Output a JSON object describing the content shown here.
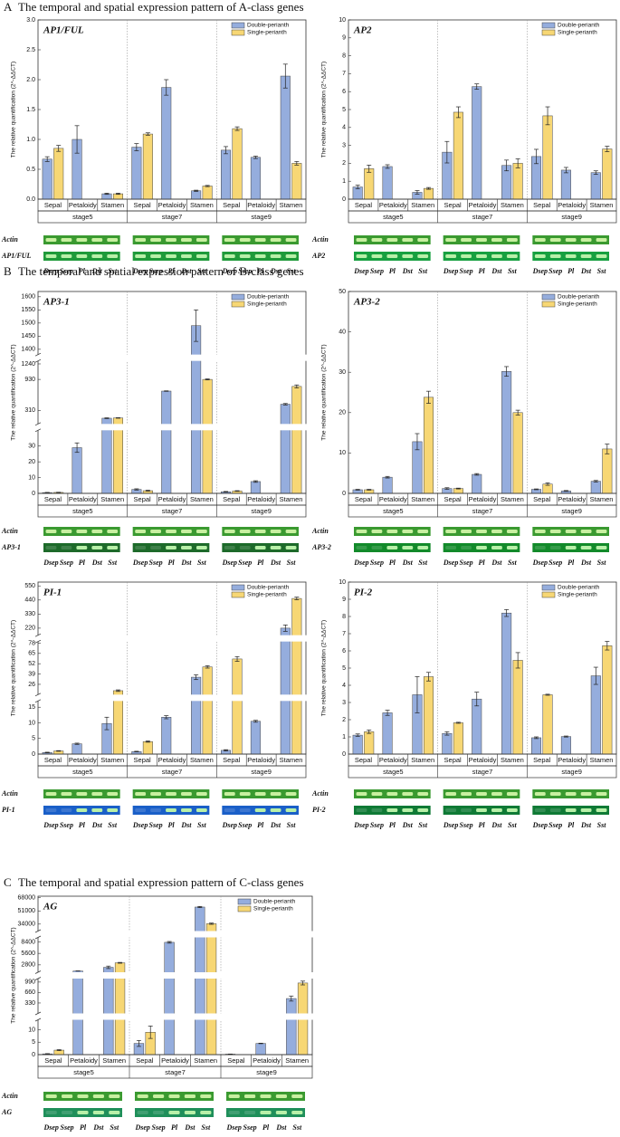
{
  "sections": [
    {
      "letter": "A",
      "title": "The temporal and spatial expression pattern of A-class genes"
    },
    {
      "letter": "B",
      "title": "The temporal and spatial expression pattern of B-class genes"
    },
    {
      "letter": "C",
      "title": "The temporal and spatial expression pattern of C-class genes"
    }
  ],
  "chart_data": [
    {
      "type": "bar",
      "title": "AP1/FUL",
      "y_label": "The relative quantification (2^-ΔΔCT)",
      "categories": [
        "Sepal",
        "Petaloidy",
        "Stamen",
        "Sepal",
        "Petaloidy",
        "Stamen",
        "Sepal",
        "Petaloidy",
        "Stamen"
      ],
      "stages": [
        "stage5",
        "stage7",
        "stage9"
      ],
      "series": [
        {
          "name": "Double-perianth",
          "color": "#95addd",
          "values": [
            0.67,
            1.0,
            0.09,
            0.87,
            1.87,
            0.14,
            0.82,
            0.7,
            2.06
          ],
          "errors": [
            0.04,
            0.23,
            0.01,
            0.06,
            0.13,
            0.01,
            0.06,
            0.02,
            0.2
          ]
        },
        {
          "name": "Single-perianth",
          "color": "#f7d774",
          "values": [
            0.85,
            null,
            0.09,
            1.09,
            null,
            0.22,
            1.18,
            null,
            0.6
          ],
          "errors": [
            0.05,
            null,
            0.01,
            0.02,
            null,
            0.01,
            0.03,
            null,
            0.03
          ]
        }
      ],
      "ylim": [
        0,
        3
      ],
      "yticks": [
        {
          "value": 0,
          "label": "0.0"
        },
        0.5,
        {
          "value": 1,
          "label": "1.0"
        },
        1.5,
        {
          "value": 2,
          "label": "2.0"
        },
        2.5,
        {
          "value": 3,
          "label": "3.0"
        }
      ],
      "gel_rows": [
        "Actin",
        "AP1/FUL"
      ],
      "gel_lanes": [
        "Dsep",
        "Ssep",
        "Pl",
        "Dst",
        "Sst"
      ]
    },
    {
      "type": "bar",
      "title": "AP2",
      "y_label": "The relative quantification (2^-ΔΔCT)",
      "categories": [
        "Sepal",
        "Petaloidy",
        "Stamen",
        "Sepal",
        "Petaloidy",
        "Stamen",
        "Sepal",
        "Petaloidy",
        "Stamen"
      ],
      "stages": [
        "stage5",
        "stage7",
        "stage9"
      ],
      "series": [
        {
          "name": "Double-perianth",
          "color": "#95addd",
          "values": [
            0.68,
            1.82,
            0.38,
            2.62,
            6.28,
            1.88,
            2.38,
            1.62,
            1.48
          ],
          "errors": [
            0.1,
            0.1,
            0.1,
            0.6,
            0.15,
            0.3,
            0.4,
            0.15,
            0.1
          ]
        },
        {
          "name": "Single-perianth",
          "color": "#f7d774",
          "values": [
            1.7,
            null,
            0.6,
            4.85,
            null,
            2.0,
            4.65,
            null,
            2.8
          ],
          "errors": [
            0.2,
            null,
            0.05,
            0.3,
            null,
            0.25,
            0.5,
            null,
            0.15
          ]
        }
      ],
      "ylim": [
        0,
        10
      ],
      "yticks": [
        0,
        1,
        2,
        3,
        4,
        5,
        6,
        7,
        8,
        9,
        10
      ],
      "gel_rows": [
        "Actin",
        "AP2"
      ],
      "gel_lanes": [
        "Dsep",
        "Ssep",
        "Pl",
        "Dst",
        "Sst"
      ]
    },
    {
      "type": "bar",
      "title": "AP3-1",
      "y_label": "The relative quantification (2^-ΔΔCT)",
      "categories": [
        "Sepal",
        "Petaloidy",
        "Stamen",
        "Sepal",
        "Petaloidy",
        "Stamen",
        "Sepal",
        "Petaloidy",
        "Stamen"
      ],
      "stages": [
        "stage5",
        "stage7",
        "stage9"
      ],
      "series": [
        {
          "name": "Double-perianth",
          "color": "#95addd",
          "values": [
            0.5,
            29,
            155,
            2.5,
            697,
            1490,
            1,
            7.5,
            434
          ],
          "errors": [
            0.1,
            3,
            8,
            0.4,
            5,
            60,
            0.2,
            0.5,
            15
          ]
        },
        {
          "name": "Single-perianth",
          "color": "#f7d774",
          "values": [
            0.6,
            null,
            160,
            1.7,
            null,
            930,
            1.5,
            null,
            790
          ],
          "errors": [
            0.1,
            null,
            5,
            0.3,
            null,
            10,
            0.2,
            null,
            30
          ]
        }
      ],
      "y_segments": [
        {
          "ylim": [
            0,
            40
          ],
          "yticks": [
            0,
            10,
            20,
            30
          ]
        },
        {
          "ylim": [
            40,
            1300
          ],
          "yticks": [
            310,
            930,
            1240
          ]
        },
        {
          "ylim": [
            1380,
            1620
          ],
          "yticks": [
            1400,
            1450,
            1500,
            1550,
            1600
          ]
        }
      ],
      "gel_rows": [
        "Actin",
        "AP3-1"
      ],
      "gel_lanes": [
        "Dsep",
        "Ssep",
        "Pl",
        "Dst",
        "Sst"
      ]
    },
    {
      "type": "bar",
      "title": "AP3-2",
      "y_label": "The relative quantification (2^-ΔΔCT)",
      "categories": [
        "Sepal",
        "Petaloidy",
        "Stamen",
        "Sepal",
        "Petaloidy",
        "Stamen",
        "Sepal",
        "Petaloidy",
        "Stamen"
      ],
      "stages": [
        "stage5",
        "stage7",
        "stage9"
      ],
      "series": [
        {
          "name": "Double-perianth",
          "color": "#95addd",
          "values": [
            0.9,
            4.0,
            12.8,
            1.2,
            4.7,
            30.2,
            1.0,
            0.6,
            3.0
          ],
          "errors": [
            0.1,
            0.2,
            2,
            0.2,
            0.2,
            1.2,
            0.1,
            0.1,
            0.2
          ]
        },
        {
          "name": "Single-perianth",
          "color": "#f7d774",
          "values": [
            0.9,
            null,
            23.8,
            1.2,
            null,
            20.0,
            2.3,
            null,
            11.0
          ],
          "errors": [
            0.1,
            null,
            1.5,
            0.1,
            null,
            0.6,
            0.3,
            null,
            1.2
          ]
        }
      ],
      "ylim": [
        0,
        50
      ],
      "yticks": [
        0,
        10,
        20,
        30,
        40,
        50
      ],
      "gel_rows": [
        "Actin",
        "AP3-2"
      ],
      "gel_lanes": [
        "Dsep",
        "Ssep",
        "Pl",
        "Dst",
        "Sst"
      ]
    },
    {
      "type": "bar",
      "title": "PI-1",
      "y_label": "The relative quantification (2^-ΔΔCT)",
      "categories": [
        "Sepal",
        "Petaloidy",
        "Stamen",
        "Sepal",
        "Petaloidy",
        "Stamen",
        "Sepal",
        "Petaloidy",
        "Stamen"
      ],
      "stages": [
        "stage5",
        "stage7",
        "stage9"
      ],
      "series": [
        {
          "name": "Double-perianth",
          "color": "#95addd",
          "values": [
            0.5,
            3.3,
            9.8,
            0.8,
            11.8,
            35,
            1.2,
            10.5,
            220
          ],
          "errors": [
            0.1,
            0.2,
            2,
            0.1,
            0.5,
            3,
            0.2,
            0.3,
            25
          ]
        },
        {
          "name": "Single-perianth",
          "color": "#f7d774",
          "values": [
            1.0,
            null,
            18,
            4.0,
            null,
            48,
            58,
            null,
            452
          ],
          "errors": [
            0.1,
            null,
            1,
            0.2,
            null,
            1.5,
            3,
            null,
            10
          ]
        }
      ],
      "y_segments": [
        {
          "ylim": [
            0,
            17
          ],
          "yticks": [
            0,
            5,
            10,
            15
          ]
        },
        {
          "ylim": [
            13,
            80
          ],
          "yticks": [
            26,
            39,
            52,
            65,
            78
          ]
        },
        {
          "ylim": [
            165,
            580
          ],
          "yticks": [
            220,
            330,
            440,
            550
          ]
        }
      ],
      "gel_rows": [
        "Actin",
        "PI-1"
      ],
      "gel_lanes": [
        "Dsep",
        "Ssep",
        "Pl",
        "Dst",
        "Sst"
      ]
    },
    {
      "type": "bar",
      "title": "PI-2",
      "y_label": "The relative quantification (2^-ΔΔCT)",
      "categories": [
        "Sepal",
        "Petaloidy",
        "Stamen",
        "Sepal",
        "Petaloidy",
        "Stamen",
        "Sepal",
        "Petaloidy",
        "Stamen"
      ],
      "stages": [
        "stage5",
        "stage7",
        "stage9"
      ],
      "series": [
        {
          "name": "Double-perianth",
          "color": "#95addd",
          "values": [
            1.1,
            2.4,
            3.45,
            1.2,
            3.2,
            8.2,
            0.95,
            1.02,
            4.55
          ],
          "errors": [
            0.07,
            0.15,
            1.05,
            0.1,
            0.4,
            0.2,
            0.05,
            0.03,
            0.5
          ]
        },
        {
          "name": "Single-perianth",
          "color": "#f7d774",
          "values": [
            1.3,
            null,
            4.5,
            1.82,
            null,
            5.45,
            3.45,
            null,
            6.3
          ],
          "errors": [
            0.1,
            null,
            0.25,
            0.03,
            null,
            0.45,
            0.03,
            null,
            0.25
          ]
        }
      ],
      "ylim": [
        0,
        10
      ],
      "yticks": [
        0,
        1,
        2,
        3,
        4,
        5,
        6,
        7,
        8,
        9,
        10
      ],
      "gel_rows": [
        "Actin",
        "PI-2"
      ],
      "gel_lanes": [
        "Dsep",
        "Ssep",
        "Pl",
        "Dst",
        "Sst"
      ]
    },
    {
      "type": "bar",
      "title": "AG",
      "y_label": "The relative quantification (2^-ΔΔCT)",
      "categories": [
        "Sepal",
        "Petaloidy",
        "Stamen",
        "Sepal",
        "Petaloidy",
        "Stamen",
        "Sepal",
        "Petaloidy",
        "Stamen"
      ],
      "stages": [
        "stage5",
        "stage7",
        "stage9"
      ],
      "series": [
        {
          "name": "Double-perianth",
          "color": "#95addd",
          "values": [
            0.3,
            1300,
            2200,
            4.5,
            8300,
            56000,
            0.2,
            4.5,
            470
          ],
          "errors": [
            0.1,
            30,
            300,
            1.2,
            200,
            800,
            0.05,
            0.1,
            80
          ]
        },
        {
          "name": "Single-perianth",
          "color": "#f7d774",
          "values": [
            1.8,
            null,
            3300,
            9,
            null,
            34500,
            null,
            null,
            960
          ],
          "errors": [
            0.2,
            null,
            100,
            2.5,
            null,
            800,
            null,
            null,
            60
          ]
        }
      ],
      "y_segments": [
        {
          "ylim": [
            0,
            14
          ],
          "yticks": [
            0,
            5,
            10
          ]
        },
        {
          "ylim": [
            0,
            1100
          ],
          "yticks": [
            330,
            660,
            990
          ]
        },
        {
          "ylim": [
            1000,
            9500
          ],
          "yticks": [
            2800,
            5600,
            8400
          ]
        },
        {
          "ylim": [
            25000,
            70000
          ],
          "yticks": [
            34000,
            51000,
            68000
          ]
        }
      ],
      "gel_rows": [
        "Actin",
        "AG"
      ],
      "gel_lanes": [
        "Dsep",
        "Ssep",
        "Pl",
        "Dst",
        "Sst"
      ]
    }
  ]
}
